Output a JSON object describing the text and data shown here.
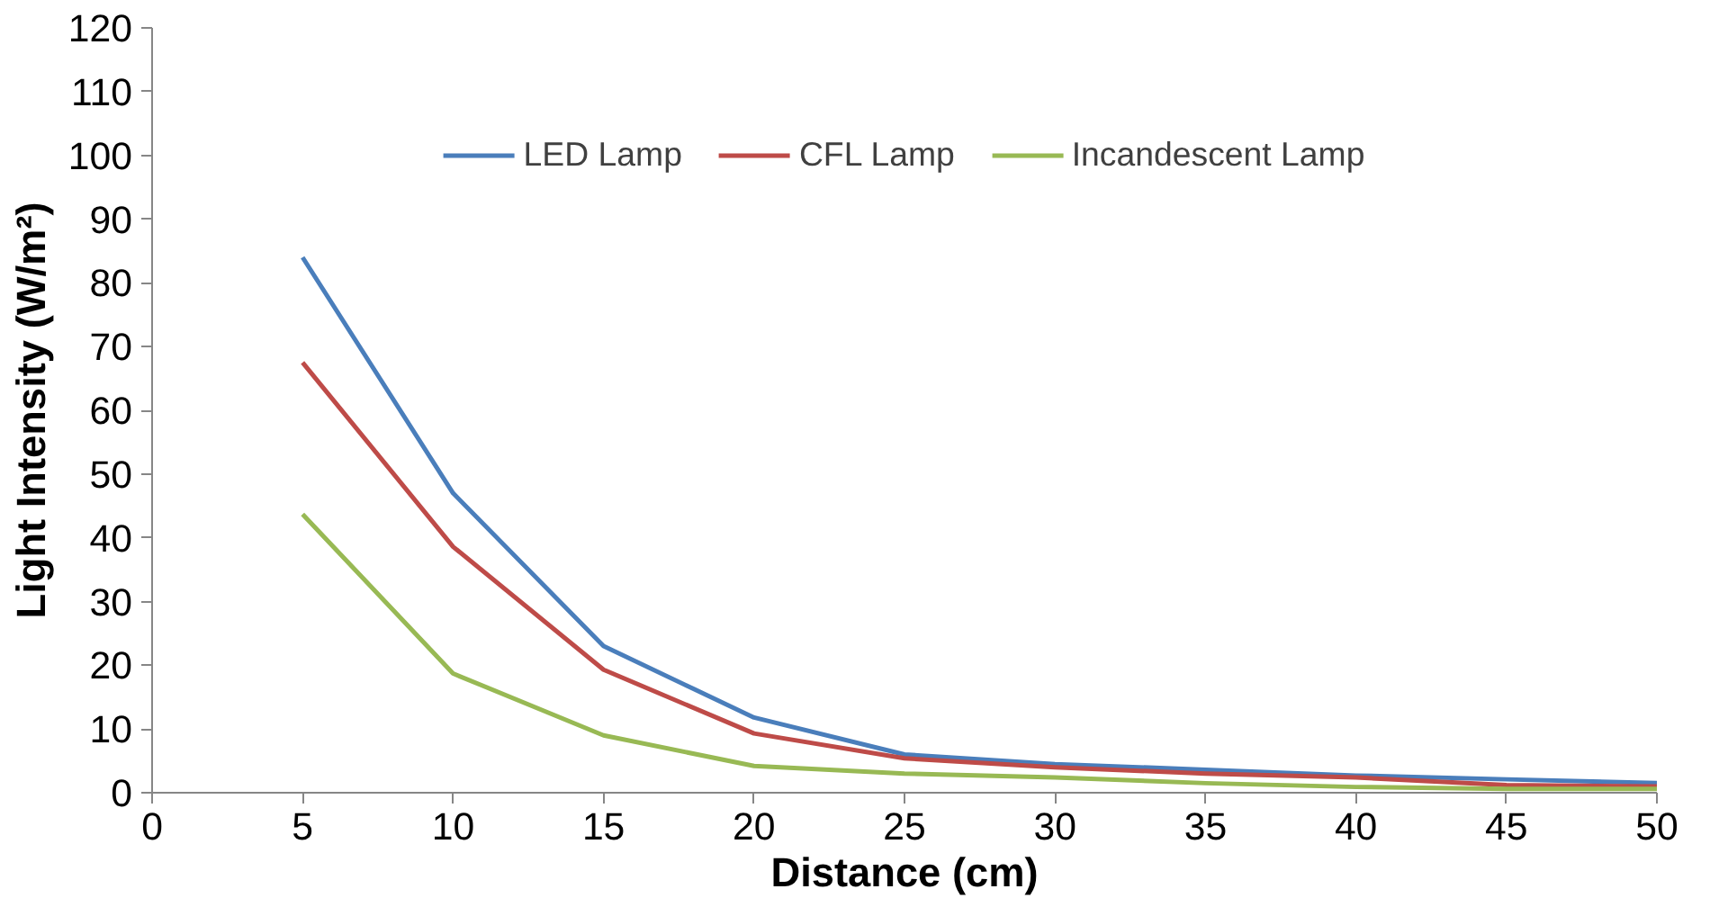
{
  "chart_data": {
    "type": "line",
    "xlabel": "Distance (cm)",
    "ylabel": "Light Intensity (W/m²)",
    "x": [
      5,
      10,
      15,
      20,
      25,
      30,
      35,
      40,
      45,
      50
    ],
    "series": [
      {
        "name": "LED Lamp",
        "color": "#4a7ebb",
        "values": [
          84,
          47,
          23,
          11.8,
          6,
          4.5,
          3.6,
          2.7,
          2.1,
          1.5
        ]
      },
      {
        "name": "CFL Lamp",
        "color": "#be4b48",
        "values": [
          67.5,
          38.6,
          19.3,
          9.3,
          5.4,
          4,
          3,
          2.4,
          1.2,
          1
        ]
      },
      {
        "name": "Incandescent Lamp",
        "color": "#98b954",
        "values": [
          43.7,
          18.7,
          9,
          4.2,
          3,
          2.4,
          1.5,
          0.9,
          0.6,
          0.6
        ]
      }
    ],
    "xlim": [
      0,
      50
    ],
    "xticks": [
      0,
      5,
      10,
      15,
      20,
      25,
      30,
      35,
      40,
      45,
      50
    ],
    "ylim": [
      0,
      120
    ],
    "yticks": [
      0,
      10,
      20,
      30,
      40,
      50,
      60,
      70,
      80,
      90,
      100,
      110,
      120
    ],
    "grid": false,
    "legend": "top",
    "marker": "none",
    "line_style": "solid"
  }
}
